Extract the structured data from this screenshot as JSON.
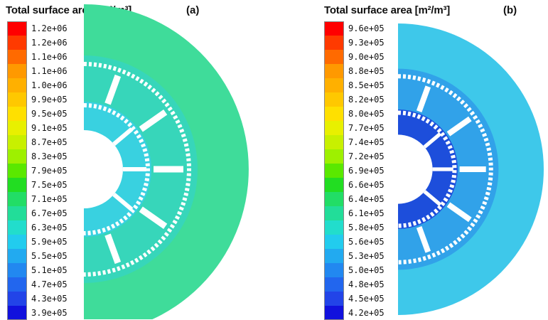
{
  "panels": [
    {
      "title": "Total surface area [m²/m³]",
      "tag": "(a)",
      "labels": [
        "1.2e+06",
        "1.2e+06",
        "1.1e+06",
        "1.1e+06",
        "1.0e+06",
        "9.9e+05",
        "9.5e+05",
        "9.1e+05",
        "8.7e+05",
        "8.3e+05",
        "7.9e+05",
        "7.5e+05",
        "7.1e+05",
        "6.7e+05",
        "6.3e+05",
        "5.9e+05",
        "5.5e+05",
        "5.1e+05",
        "4.7e+05",
        "4.3e+05",
        "3.9e+05"
      ],
      "field_color": "#3fdc9a",
      "inner_color": "#36d4c4",
      "core_color": "#3ad0e6"
    },
    {
      "title": "Total surface area [m²/m³]",
      "tag": "(b)",
      "labels": [
        "9.6e+05",
        "9.3e+05",
        "9.0e+05",
        "8.8e+05",
        "8.5e+05",
        "8.2e+05",
        "8.0e+05",
        "7.7e+05",
        "7.4e+05",
        "7.2e+05",
        "6.9e+05",
        "6.6e+05",
        "6.4e+05",
        "6.1e+05",
        "5.8e+05",
        "5.6e+05",
        "5.3e+05",
        "5.0e+05",
        "4.8e+05",
        "4.5e+05",
        "4.2e+05"
      ],
      "field_color": "#3ec8ea",
      "inner_color": "#2d96e8",
      "core_color": "#1a3fd8"
    }
  ],
  "colormap": [
    "#ff0000",
    "#ff3a00",
    "#ff6a00",
    "#ff9900",
    "#ffb000",
    "#ffc800",
    "#ffe000",
    "#e8f000",
    "#c8f000",
    "#9ef000",
    "#5ae800",
    "#22dd22",
    "#22dd66",
    "#22dd99",
    "#22ddcc",
    "#22ccee",
    "#22aaf0",
    "#2288f0",
    "#2266ee",
    "#2244e8",
    "#1111dd"
  ]
}
